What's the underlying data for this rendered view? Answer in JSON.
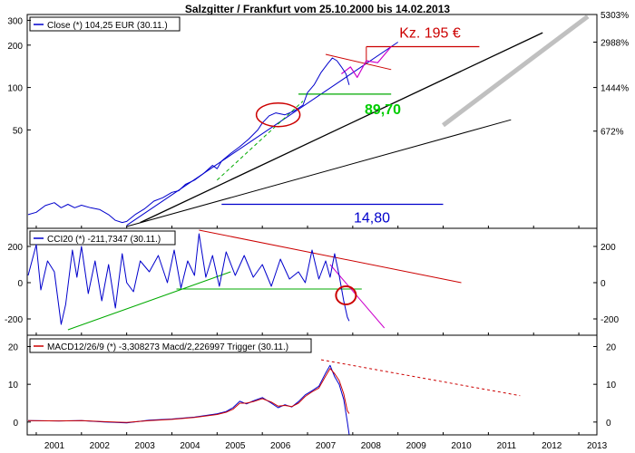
{
  "chart_data": [
    {
      "type": "line",
      "panel": "price",
      "title": "Salzgitter / Frankfurt vom 25.10.2000 bis 14.02.2013",
      "legend": "Close (*) 104,25 EUR (30.11.)",
      "y_scale": "log",
      "ylim": [
        10,
        330
      ],
      "left_ticks": [
        "50",
        "100",
        "200",
        "300"
      ],
      "left_tick_values": [
        50,
        100,
        200,
        300
      ],
      "right_ticks": [
        "5303%",
        "2988%",
        "1444%",
        "672%"
      ],
      "right_tick_values": [
        330,
        210,
        100,
        49
      ],
      "series": [
        {
          "name": "Close",
          "color": "#0000cc",
          "x": [
            2000.82,
            2001.0,
            2001.2,
            2001.4,
            2001.55,
            2001.7,
            2001.85,
            2002.0,
            2002.2,
            2002.4,
            2002.6,
            2002.75,
            2002.9,
            2003.0,
            2003.2,
            2003.4,
            2003.6,
            2003.8,
            2004.0,
            2004.15,
            2004.3,
            2004.5,
            2004.7,
            2004.9,
            2005.0,
            2005.1,
            2005.3,
            2005.5,
            2005.7,
            2005.9,
            2006.0,
            2006.15,
            2006.3,
            2006.5,
            2006.7,
            2006.9,
            2007.0,
            2007.15,
            2007.3,
            2007.45,
            2007.55,
            2007.65,
            2007.75,
            2007.85,
            2007.92
          ],
          "values": [
            12.5,
            13.0,
            14.5,
            15.2,
            14.0,
            14.8,
            14.0,
            14.6,
            14.0,
            13.6,
            12.5,
            11.4,
            11.0,
            11.2,
            12.6,
            13.8,
            15.6,
            16.5,
            18.0,
            18.5,
            20.5,
            22.0,
            24.5,
            28.0,
            26.5,
            30.0,
            34.0,
            38.0,
            43.0,
            50.0,
            56.0,
            63.0,
            66.0,
            64.0,
            68.0,
            75.0,
            92.0,
            105.0,
            128.0,
            148.0,
            162.0,
            155.0,
            140.0,
            125.0,
            104.25
          ]
        }
      ],
      "trendlines": [
        {
          "name": "uptrend-blue",
          "color": "#0000cc",
          "x": [
            2003.0,
            2009.0
          ],
          "values": [
            10.5,
            210
          ]
        },
        {
          "name": "long-term-black-1",
          "color": "#000000",
          "x": [
            2003.3,
            2012.2
          ],
          "values": [
            11.0,
            245
          ]
        },
        {
          "name": "long-term-black-2",
          "color": "#000000",
          "x": [
            2003.0,
            2011.5
          ],
          "values": [
            10.3,
            59
          ]
        },
        {
          "name": "projection-grey",
          "color": "#c0c0c0",
          "x": [
            2010.0,
            2013.2
          ],
          "values": [
            54,
            320
          ]
        },
        {
          "name": "green-dashed",
          "color": "#00aa00",
          "x": [
            2005.0,
            2006.9
          ],
          "values": [
            22.0,
            80.0
          ]
        },
        {
          "name": "red-downtrend",
          "color": "#cc0000",
          "x": [
            2007.4,
            2008.85
          ],
          "values": [
            172,
            134
          ]
        }
      ],
      "levels": [
        {
          "name": "support-14-80",
          "label": "14,80",
          "value": 14.8,
          "x": [
            2005.1,
            2010.0
          ],
          "color": "#0000cc"
        },
        {
          "name": "support-89-70",
          "label": "89,70",
          "value": 89.7,
          "x": [
            2006.8,
            2008.85
          ],
          "color": "#00aa00"
        },
        {
          "name": "target-195",
          "label": "Kz. 195 €",
          "value": 195,
          "x": [
            2008.3,
            2010.8
          ],
          "color": "#cc0000"
        }
      ],
      "projection_zigzag": {
        "color": "#cc00cc",
        "x": [
          2007.75,
          2007.95,
          2008.1,
          2008.3,
          2008.55,
          2008.85
        ],
        "values": [
          125,
          140,
          118,
          155,
          150,
          195
        ]
      }
    },
    {
      "type": "line",
      "panel": "cci",
      "legend": "CCI20 (*) -211,7347 (30.11.)",
      "ylim": [
        -290,
        300
      ],
      "left_ticks": [
        "200",
        "0",
        "-200"
      ],
      "right_ticks": [
        "200",
        "0",
        "-200"
      ],
      "tick_values": [
        200,
        0,
        -200
      ],
      "series": [
        {
          "name": "CCI20",
          "color": "#0000cc",
          "x": [
            2000.82,
            2001.0,
            2001.1,
            2001.25,
            2001.4,
            2001.55,
            2001.65,
            2001.8,
            2001.9,
            2002.0,
            2002.15,
            2002.3,
            2002.45,
            2002.6,
            2002.75,
            2002.9,
            2003.0,
            2003.15,
            2003.3,
            2003.5,
            2003.7,
            2003.9,
            2004.05,
            2004.2,
            2004.35,
            2004.5,
            2004.6,
            2004.75,
            2004.9,
            2005.05,
            2005.2,
            2005.4,
            2005.6,
            2005.8,
            2006.0,
            2006.2,
            2006.4,
            2006.6,
            2006.8,
            2006.95,
            2007.1,
            2007.25,
            2007.4,
            2007.5,
            2007.6,
            2007.7,
            2007.8,
            2007.88,
            2007.92
          ],
          "values": [
            40,
            210,
            -40,
            120,
            60,
            -230,
            -120,
            180,
            30,
            200,
            -60,
            120,
            -100,
            100,
            -140,
            160,
            0,
            -50,
            120,
            60,
            150,
            0,
            180,
            -30,
            120,
            40,
            270,
            30,
            150,
            -20,
            170,
            40,
            150,
            30,
            100,
            -20,
            130,
            20,
            60,
            0,
            180,
            20,
            120,
            30,
            160,
            40,
            -100,
            -190,
            -211.73
          ]
        }
      ],
      "trendlines": [
        {
          "name": "cci-red-down",
          "color": "#cc0000",
          "x": [
            2004.6,
            2010.4
          ],
          "values": [
            290,
            0
          ]
        },
        {
          "name": "cci-green-rising",
          "color": "#00aa00",
          "x": [
            2001.7,
            2005.3
          ],
          "values": [
            -260,
            60
          ]
        },
        {
          "name": "cci-green-flat",
          "color": "#00aa00",
          "x": [
            2004.1,
            2008.2
          ],
          "values": [
            -35,
            -35
          ]
        },
        {
          "name": "cci-magenta",
          "color": "#cc00cc",
          "x": [
            2007.5,
            2008.7
          ],
          "values": [
            100,
            -250
          ]
        }
      ]
    },
    {
      "type": "line",
      "panel": "macd",
      "legend": "MACD12/26/9 (*) -3,308273 Macd/2,226997 Trigger (30.11.)",
      "ylim": [
        -3.4,
        23
      ],
      "left_ticks": [
        "20",
        "10",
        "0"
      ],
      "right_ticks": [
        "20",
        "10",
        "0"
      ],
      "tick_values": [
        20,
        10,
        0
      ],
      "series": [
        {
          "name": "Macd",
          "color": "#0000cc",
          "x": [
            2000.82,
            2001.5,
            2002.0,
            2002.5,
            2003.0,
            2003.5,
            2004.0,
            2004.5,
            2005.0,
            2005.2,
            2005.35,
            2005.5,
            2005.65,
            2005.8,
            2006.0,
            2006.2,
            2006.35,
            2006.5,
            2006.65,
            2006.8,
            2006.95,
            2007.1,
            2007.25,
            2007.4,
            2007.5,
            2007.6,
            2007.7,
            2007.8,
            2007.88,
            2007.92
          ],
          "values": [
            0.4,
            0.3,
            0.4,
            0.0,
            -0.2,
            0.5,
            0.8,
            1.3,
            2.2,
            2.8,
            3.8,
            5.5,
            4.8,
            5.6,
            6.5,
            5.0,
            3.8,
            4.6,
            4.0,
            5.4,
            7.2,
            8.3,
            9.5,
            13.0,
            15.0,
            12.0,
            10.0,
            6.0,
            0.0,
            -3.31
          ]
        },
        {
          "name": "Trigger",
          "color": "#cc0000",
          "x": [
            2000.82,
            2001.5,
            2002.0,
            2002.5,
            2003.0,
            2003.5,
            2004.0,
            2004.5,
            2005.0,
            2005.2,
            2005.35,
            2005.5,
            2005.65,
            2005.8,
            2006.0,
            2006.2,
            2006.35,
            2006.5,
            2006.65,
            2006.8,
            2006.95,
            2007.1,
            2007.25,
            2007.4,
            2007.5,
            2007.6,
            2007.7,
            2007.8,
            2007.88,
            2007.92
          ],
          "values": [
            0.4,
            0.3,
            0.4,
            0.1,
            -0.1,
            0.4,
            0.7,
            1.2,
            2.0,
            2.6,
            3.4,
            5.0,
            5.0,
            5.4,
            6.2,
            5.3,
            4.2,
            4.4,
            4.1,
            5.0,
            6.8,
            8.0,
            9.0,
            12.2,
            14.2,
            12.8,
            11.0,
            7.5,
            3.0,
            2.23
          ]
        }
      ],
      "trendlines": [
        {
          "name": "macd-red-dashed",
          "color": "#cc0000",
          "x": [
            2007.3,
            2011.7
          ],
          "values": [
            16.5,
            7.0
          ]
        }
      ]
    }
  ],
  "x_axis": {
    "labels": [
      "2001",
      "2002",
      "2003",
      "2004",
      "2005",
      "2006",
      "2007",
      "2008",
      "2009",
      "2010",
      "2011",
      "2012",
      "2013"
    ],
    "values": [
      2001,
      2002,
      2003,
      2004,
      2005,
      2006,
      2007,
      2008,
      2009,
      2010,
      2011,
      2012,
      2013
    ],
    "range": [
      2000.8,
      2013.4
    ]
  }
}
